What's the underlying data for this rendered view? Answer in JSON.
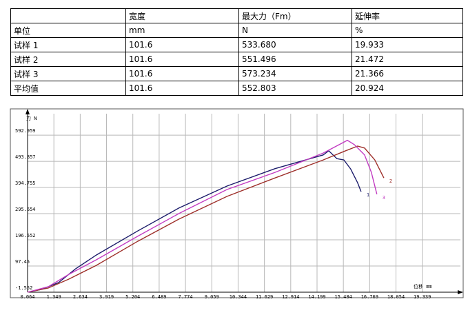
{
  "table": {
    "header": [
      "宽度",
      "最大力（Fm）",
      "延伸率"
    ],
    "rows": [
      [
        "单位",
        "mm",
        "N",
        "%"
      ],
      [
        "试样 1",
        "101.6",
        "533.680",
        "19.933"
      ],
      [
        "试样 2",
        "101.6",
        "551.496",
        "21.472"
      ],
      [
        "试样 3",
        "101.6",
        "573.234",
        "21.366"
      ],
      [
        "平均值",
        "101.6",
        "552.803",
        "20.924"
      ]
    ]
  },
  "chart_data": {
    "type": "line",
    "ylabel": "力 N",
    "xlabel": "位移 mm",
    "xlim": [
      0.064,
      21.2
    ],
    "ylim": [
      -1.552,
      674
    ],
    "xticks": [
      0.064,
      1.349,
      2.634,
      3.919,
      5.204,
      6.489,
      7.774,
      9.059,
      10.344,
      11.629,
      12.914,
      14.199,
      15.484,
      16.769,
      18.054,
      19.339
    ],
    "yticks": [
      -1.552,
      97.45,
      196.552,
      295.654,
      394.755,
      493.857,
      592.959
    ],
    "grid": true,
    "series": [
      {
        "name": "1",
        "color": "#1c1c6b",
        "x": [
          0.064,
          0.74,
          1.58,
          2.41,
          3.42,
          5.44,
          7.45,
          9.8,
          12.15,
          14.5,
          14.77,
          15.17,
          15.51,
          15.84,
          16.18,
          16.35
        ],
        "values": [
          -1.552,
          8.9,
          35,
          87,
          139,
          230,
          317,
          400,
          466,
          518,
          533.68,
          504,
          499,
          465,
          413,
          379
        ]
      },
      {
        "name": "2",
        "color": "#9e2f2a",
        "x": [
          0.064,
          1.07,
          2.08,
          3.42,
          5.44,
          7.45,
          9.8,
          12.15,
          14.5,
          15.51,
          16.18,
          16.52,
          17.02,
          17.46
        ],
        "values": [
          -1.552,
          14,
          48,
          100,
          191,
          275,
          361,
          431,
          499,
          531,
          551.5,
          544,
          499,
          431
        ]
      },
      {
        "name": "3",
        "color": "#c23cc2",
        "x": [
          0.064,
          1.07,
          2.08,
          3.42,
          5.44,
          7.45,
          9.8,
          12.15,
          14.5,
          15.68,
          16.02,
          16.52,
          16.85,
          17.12
        ],
        "values": [
          -1.552,
          19,
          66,
          121,
          210,
          296,
          387,
          452,
          525,
          573.2,
          557,
          518,
          452,
          369
        ]
      }
    ]
  }
}
